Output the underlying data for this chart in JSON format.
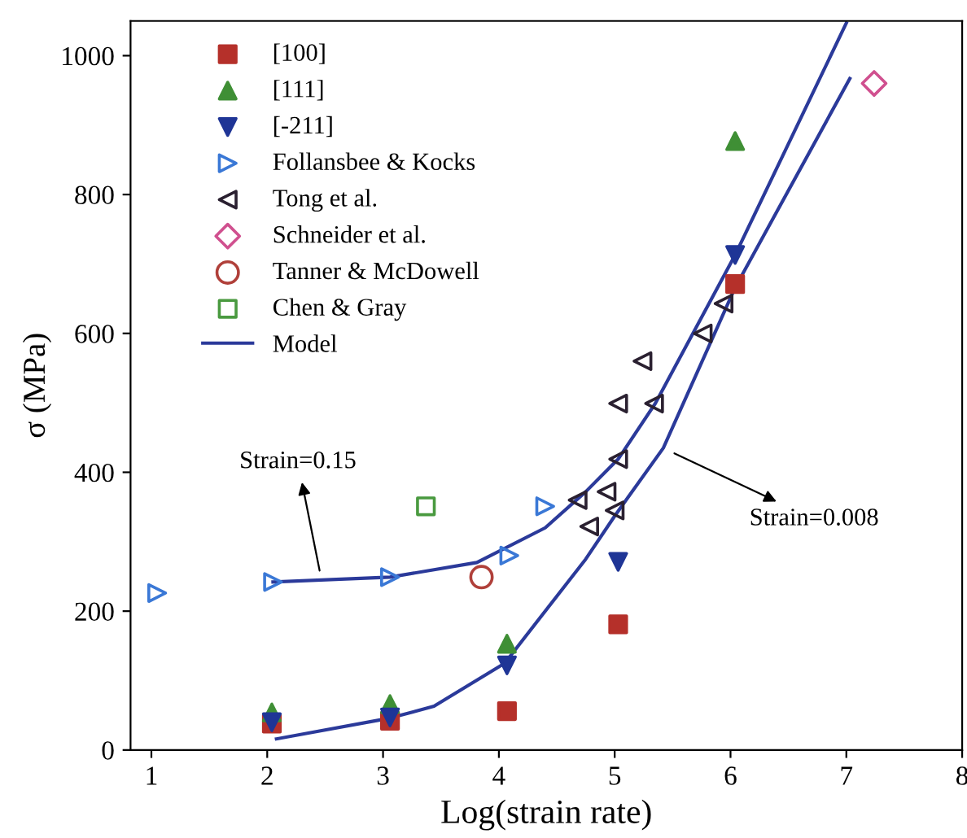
{
  "chart_data": {
    "type": "scatter",
    "xlabel": "Log(strain rate)",
    "ylabel": "σ (MPa)",
    "xlim": [
      0.82,
      8
    ],
    "ylim": [
      0,
      1050
    ],
    "xticks": [
      1,
      2,
      3,
      4,
      5,
      6,
      7,
      8
    ],
    "yticks": [
      0,
      200,
      400,
      600,
      800,
      1000
    ],
    "grid": false,
    "legend": "top left",
    "series": [
      {
        "name": "[100]",
        "color": "#b5302a",
        "marker": "square",
        "x": [
          2.04,
          3.06,
          4.07,
          5.03,
          6.04
        ],
        "values": [
          38,
          42,
          56,
          181,
          671
        ]
      },
      {
        "name": "[111]",
        "color": "#3f8f35",
        "marker": "triangle",
        "x": [
          2.04,
          3.06,
          4.07,
          6.04
        ],
        "values": [
          54,
          66,
          153,
          877
        ]
      },
      {
        "name": "[-211]",
        "color": "#1f3596",
        "marker": "triangle",
        "x": [
          2.04,
          3.06,
          4.07,
          5.03,
          6.04
        ],
        "values": [
          40,
          47,
          122,
          271,
          713
        ]
      },
      {
        "name": "Follansbee & Kocks",
        "color": "#3a78d6",
        "marker": "triangle",
        "x": [
          1.05,
          2.05,
          3.06,
          4.09,
          4.4
        ],
        "values": [
          226,
          242,
          249,
          280,
          351
        ]
      },
      {
        "name": "Tong et al.",
        "color": "#2a2030",
        "marker": "triangle",
        "x": [
          4.68,
          4.78,
          4.93,
          5.0,
          5.03,
          5.03,
          5.24,
          5.34,
          5.76,
          5.94
        ],
        "values": [
          360,
          322,
          372,
          345,
          419,
          499,
          560,
          499,
          600,
          643
        ]
      },
      {
        "name": "Schneider et al.",
        "color": "#d0508f",
        "marker": "diamond",
        "x": [
          7.24
        ],
        "values": [
          960
        ]
      },
      {
        "name": "Tanner & McDowell",
        "color": "#b0403a",
        "marker": "circle",
        "x": [
          3.85
        ],
        "values": [
          249
        ]
      },
      {
        "name": "Chen & Gray",
        "color": "#4a9a40",
        "marker": "square",
        "x": [
          3.37
        ],
        "values": [
          351
        ]
      },
      {
        "name": "Model",
        "type": "line",
        "color": "#2b3a9a",
        "marker": "none",
        "x": [
          2.05,
          3.06,
          3.81,
          4.4,
          4.75,
          5.03,
          5.35,
          6.04,
          7.0
        ],
        "values": [
          242,
          249,
          270,
          320,
          372,
          419,
          499,
          713,
          1047
        ]
      },
      {
        "type": "line",
        "color": "#2b3a9a",
        "marker": "none",
        "x": [
          2.08,
          3.06,
          3.44,
          4.05,
          4.75,
          5.0,
          5.42,
          6.04,
          7.03
        ],
        "values": [
          16,
          46,
          63,
          125,
          275,
          337,
          435,
          666,
          967
        ]
      }
    ],
    "annotations": [
      {
        "text": "Strain=0.15",
        "x": 2.46,
        "y": 252
      },
      {
        "text": "Strain=0.008",
        "x": 5.48,
        "y": 430
      }
    ]
  }
}
